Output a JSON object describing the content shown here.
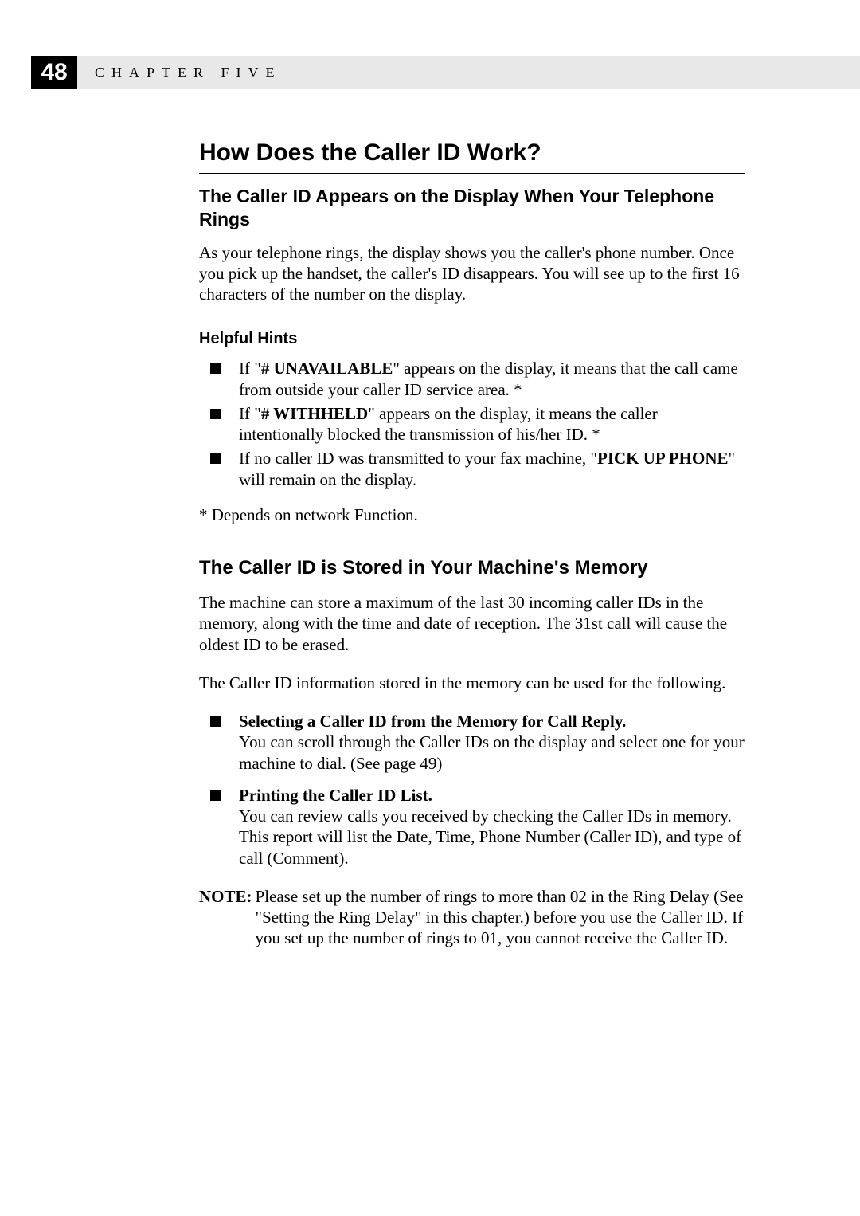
{
  "header": {
    "page_number": "48",
    "chapter_label": "CHAPTER FIVE"
  },
  "main_title": "How Does the Caller ID Work?",
  "section1": {
    "title": "The Caller ID Appears on the Display When Your Telephone Rings",
    "body": "As your telephone rings, the display shows you the caller's phone number. Once you pick up the handset, the caller's ID disappears. You will see up to the first 16 characters of the number on the display."
  },
  "hints": {
    "title": "Helpful Hints",
    "items": [
      {
        "prefix": "If \"",
        "bold": "# UNAVAILABLE",
        "suffix": "\" appears on the display, it means that the call came from outside your caller ID service area. *"
      },
      {
        "prefix": "If \"",
        "bold": "# WITHHELD",
        "suffix": "\" appears on the display, it means the caller intentionally blocked the transmission of his/her ID. *"
      },
      {
        "prefix": "If no caller ID was transmitted to your fax machine, \"",
        "bold": "PICK UP PHONE",
        "suffix": "\" will remain on the display."
      }
    ],
    "footnote": "* Depends on network Function."
  },
  "section2": {
    "title": "The Caller ID is Stored in Your Machine's Memory",
    "body1": "The machine can store a maximum of the last 30 incoming caller IDs in the memory, along with the time and date of reception. The 31st call will cause the oldest ID to be erased.",
    "body2": "The Caller ID information stored in the memory can be used for the following.",
    "items": [
      {
        "heading": "Selecting a Caller ID from the Memory for Call Reply.",
        "text": "You can scroll through the Caller IDs on the display and select one for your machine to dial. (See page 49)"
      },
      {
        "heading": "Printing the Caller ID List.",
        "text": "You can review calls you received by checking the Caller IDs in memory. This report will list the Date, Time, Phone Number (Caller ID), and type of call (Comment)."
      }
    ]
  },
  "note": {
    "label": "NOTE:",
    "text": "Please set up the number of rings to more than 02 in the Ring Delay (See \"Setting the Ring Delay\" in this chapter.) before you use the Caller ID. If you set up the number of rings to 01, you cannot receive the Caller ID."
  }
}
